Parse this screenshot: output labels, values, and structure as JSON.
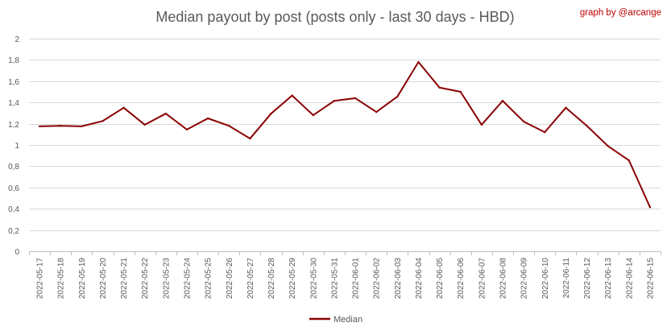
{
  "chart_data": {
    "type": "line",
    "title": "Median payout by post (posts only - last 30 days - HBD)",
    "credit": "graph by @arcange",
    "x": [
      "2022-05-17",
      "2022-05-18",
      "2022-05-19",
      "2022-05-20",
      "2022-05-21",
      "2022-05-22",
      "2022-05-23",
      "2022-05-24",
      "2022-05-25",
      "2022-05-26",
      "2022-05-27",
      "2022-05-28",
      "2022-05-29",
      "2022-05-30",
      "2022-05-31",
      "2022-06-01",
      "2022-06-02",
      "2022-06-03",
      "2022-06-04",
      "2022-06-05",
      "2022-06-06",
      "2022-06-07",
      "2022-06-08",
      "2022-06-09",
      "2022-06-10",
      "2022-06-11",
      "2022-06-12",
      "2022-06-13",
      "2022-06-14",
      "2022-06-15"
    ],
    "series": [
      {
        "name": "Median",
        "color": "#8b0000",
        "values": [
          1.175,
          1.18,
          1.175,
          1.225,
          1.35,
          1.19,
          1.295,
          1.145,
          1.25,
          1.18,
          1.06,
          1.295,
          1.465,
          1.28,
          1.415,
          1.44,
          1.31,
          1.455,
          1.78,
          1.54,
          1.5,
          1.19,
          1.415,
          1.22,
          1.12,
          1.35,
          1.18,
          0.99,
          0.855,
          0.415
        ]
      }
    ],
    "y_ticks": [
      "0",
      "0,2",
      "0,4",
      "0,6",
      "0,8",
      "1",
      "1,2",
      "1,4",
      "1,6",
      "1,8",
      "2"
    ],
    "ylim": [
      0,
      2
    ],
    "grid": true,
    "legend_position": "bottom"
  }
}
